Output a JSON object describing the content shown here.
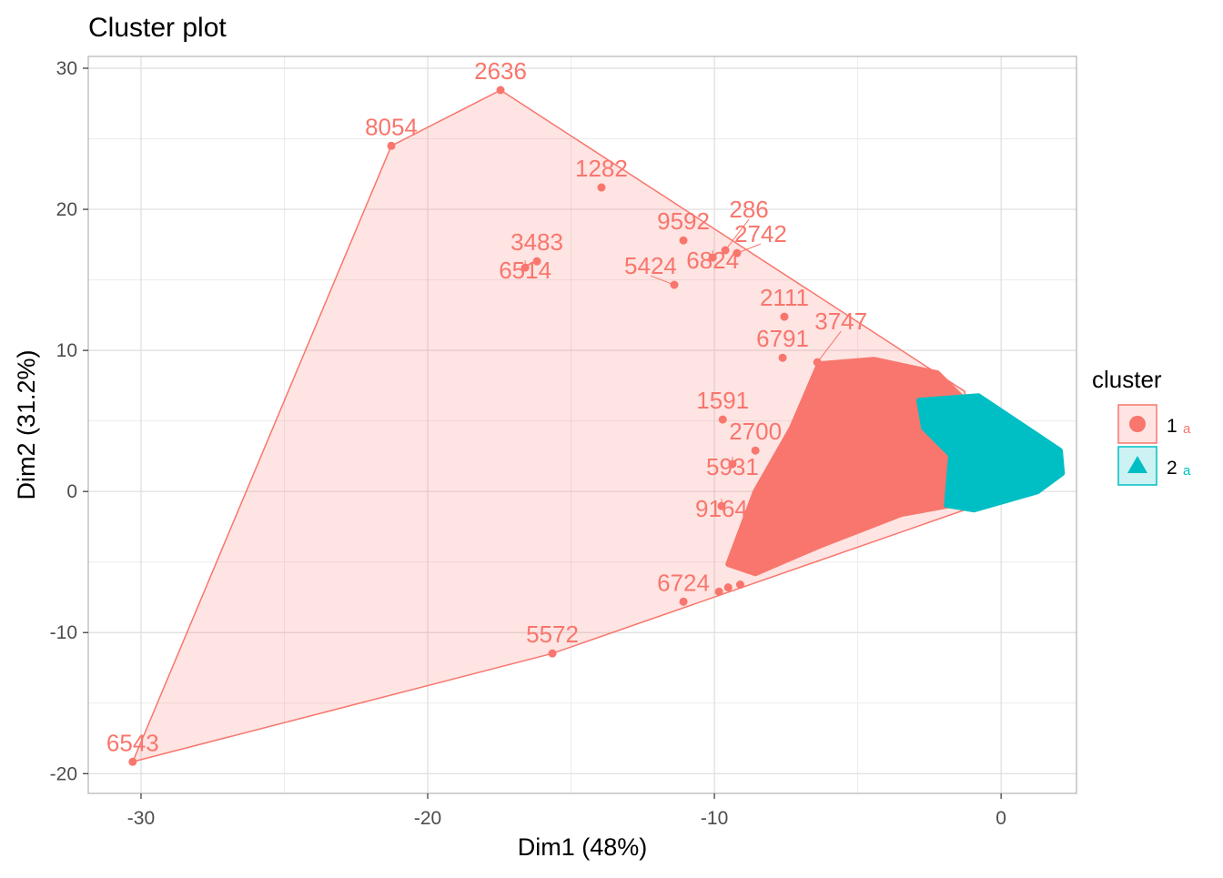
{
  "chart_data": {
    "type": "scatter",
    "title": "Cluster plot",
    "xlabel": "Dim1 (48%)",
    "ylabel": "Dim2 (31.2%)",
    "xlim": [
      -31.84,
      2.63
    ],
    "ylim": [
      -21.4,
      30.84
    ],
    "xticks": [
      -30,
      -20,
      -10,
      0
    ],
    "yticks": [
      -20,
      -10,
      0,
      10,
      20,
      30
    ],
    "grid": true,
    "legend": {
      "title": "cluster",
      "placement": "right",
      "entries": [
        {
          "label": "1",
          "color": "#F8766D",
          "shape": "circle",
          "key_text": "a"
        },
        {
          "label": "2",
          "color": "#00BFC4",
          "shape": "triangle",
          "key_text": "a"
        }
      ]
    },
    "clusters": [
      {
        "name": "1",
        "color": "#F8766D",
        "hull": [
          [
            -17.46,
            28.45
          ],
          [
            -1.27,
            7.1
          ],
          [
            -0.79,
            -0.97
          ],
          [
            -15.65,
            -11.48
          ],
          [
            -30.29,
            -19.16
          ],
          [
            -21.27,
            24.5
          ]
        ],
        "dense_region": [
          [
            -6.35,
            9.03
          ],
          [
            -4.44,
            9.35
          ],
          [
            -2.22,
            8.39
          ],
          [
            -1.27,
            6.45
          ],
          [
            -1.75,
            -0.97
          ],
          [
            -3.49,
            -1.61
          ],
          [
            -6.35,
            -3.87
          ],
          [
            -8.57,
            -5.81
          ],
          [
            -9.52,
            -5.16
          ],
          [
            -8.57,
            0
          ],
          [
            -7.3,
            4.52
          ]
        ],
        "points": [
          {
            "label": "2636",
            "x": -17.46,
            "y": 28.45
          },
          {
            "label": "8054",
            "x": -21.27,
            "y": 24.5
          },
          {
            "label": "1282",
            "x": -13.94,
            "y": 21.55
          },
          {
            "label": "9592",
            "x": -11.08,
            "y": 17.8
          },
          {
            "label": "286",
            "x": -9.62,
            "y": 17.1
          },
          {
            "label": "2742",
            "x": -9.21,
            "y": 16.9
          },
          {
            "label": "6824",
            "x": -10.06,
            "y": 16.58
          },
          {
            "label": "3483",
            "x": -16.19,
            "y": 16.32
          },
          {
            "label": "6514",
            "x": -16.6,
            "y": 15.87
          },
          {
            "label": "5424",
            "x": -11.4,
            "y": 14.65
          },
          {
            "label": "2111",
            "x": -7.56,
            "y": 12.39
          },
          {
            "label": "6791",
            "x": -7.62,
            "y": 9.48
          },
          {
            "label": "3747",
            "x": -6.41,
            "y": 9.16
          },
          {
            "label": "1591",
            "x": -9.71,
            "y": 5.1
          },
          {
            "label": "2700",
            "x": -8.57,
            "y": 2.9
          },
          {
            "label": "5931",
            "x": -9.37,
            "y": 1.94
          },
          {
            "label": "9164",
            "x": -9.75,
            "y": -1.03
          },
          {
            "label": "6724",
            "x": -11.08,
            "y": -7.81
          },
          {
            "label": "5572",
            "x": -15.65,
            "y": -11.48
          },
          {
            "label": "6543",
            "x": -30.29,
            "y": -19.16
          },
          {
            "label": "",
            "x": -9.84,
            "y": -7.1
          },
          {
            "label": "",
            "x": -9.52,
            "y": -6.8
          },
          {
            "label": "",
            "x": -9.1,
            "y": -6.6
          }
        ]
      },
      {
        "name": "2",
        "color": "#00BFC4",
        "hull": [
          [
            -2.86,
            6.45
          ],
          [
            -0.79,
            6.77
          ],
          [
            2.06,
            2.9
          ],
          [
            2.13,
            1.29
          ],
          [
            1.27,
            0
          ],
          [
            -0.95,
            -1.29
          ],
          [
            -1.9,
            -0.97
          ],
          [
            -1.75,
            2.58
          ],
          [
            -2.7,
            4.52
          ]
        ],
        "dense_region": [
          [
            -2.86,
            6.45
          ],
          [
            -0.79,
            6.77
          ],
          [
            2.06,
            2.9
          ],
          [
            2.13,
            1.29
          ],
          [
            1.27,
            0
          ],
          [
            -0.95,
            -1.29
          ],
          [
            -1.9,
            -0.97
          ],
          [
            -1.75,
            2.58
          ],
          [
            -2.7,
            4.52
          ]
        ],
        "points": []
      }
    ]
  }
}
